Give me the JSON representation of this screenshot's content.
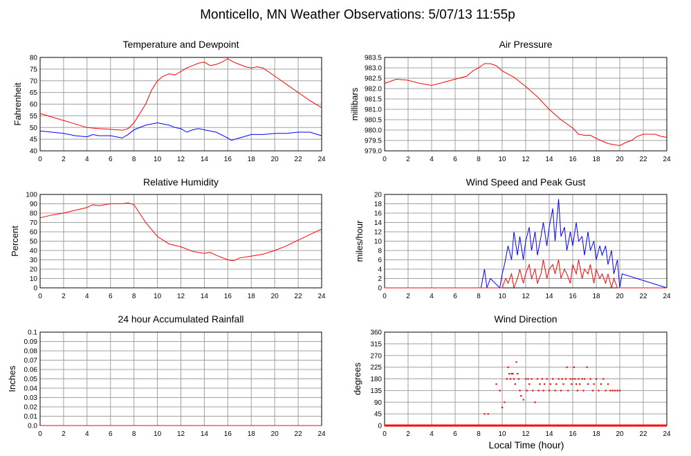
{
  "page_title": "Monticello, MN Weather Observations: 5/07/13 11:55p",
  "xlabel": "Local Time (hour)",
  "colors": {
    "red": "#ff0000",
    "blue": "#0000ff",
    "grid": "#a0a0a0",
    "axis": "#000000"
  },
  "chart_data": [
    {
      "type": "line",
      "title": "Temperature and Dewpoint",
      "ylabel": "Fahrenheit",
      "xlim": [
        0,
        24
      ],
      "ylim": [
        40,
        80
      ],
      "x_ticks": [
        0,
        2,
        4,
        6,
        8,
        10,
        12,
        14,
        16,
        18,
        20,
        22,
        24
      ],
      "y_ticks": [
        40,
        45,
        50,
        55,
        60,
        65,
        70,
        75,
        80
      ],
      "y_tick_labels": [
        "40",
        "45",
        "50",
        "55",
        "60",
        "65",
        "70",
        "75",
        "80"
      ],
      "grid": true,
      "series": [
        {
          "color": "#ff0000",
          "x": [
            0,
            1,
            2,
            3,
            4,
            5,
            6,
            7,
            7.5,
            8,
            9,
            9.5,
            10,
            10.5,
            11,
            11.5,
            12,
            12.5,
            13,
            13.5,
            14,
            14.5,
            15,
            15.5,
            16,
            16.5,
            17,
            17.5,
            18,
            18.5,
            19,
            20,
            21,
            22,
            23,
            24
          ],
          "y": [
            56,
            54.5,
            53,
            51.5,
            50,
            49.5,
            49.2,
            48.8,
            49.5,
            52,
            60,
            66,
            70,
            72,
            73,
            72.5,
            74,
            75.5,
            76.5,
            77.5,
            78,
            76.5,
            77,
            78,
            79.5,
            78,
            77,
            76,
            75.5,
            76,
            75.5,
            72,
            68.5,
            65,
            61.5,
            58.5
          ]
        },
        {
          "color": "#0000ff",
          "x": [
            0,
            1,
            2,
            3,
            4,
            4.5,
            5,
            6,
            7,
            7.5,
            8,
            9,
            10,
            11,
            11.5,
            12,
            12.5,
            13,
            13.5,
            14,
            14.5,
            15,
            16,
            16.3,
            17,
            18,
            19,
            20,
            21,
            22,
            23,
            24
          ],
          "y": [
            48.5,
            48,
            47.5,
            46.5,
            46,
            47,
            46.5,
            46.5,
            45.5,
            47,
            49,
            51,
            52,
            51,
            50,
            49.5,
            48,
            49,
            49.5,
            49,
            48.5,
            48,
            45.5,
            44.5,
            45.5,
            47,
            47,
            47.5,
            47.5,
            48,
            48,
            46.5
          ]
        }
      ]
    },
    {
      "type": "line",
      "title": "Air Pressure",
      "ylabel": "millibars",
      "xlim": [
        0,
        24
      ],
      "ylim": [
        979.0,
        983.5
      ],
      "x_ticks": [
        0,
        2,
        4,
        6,
        8,
        10,
        12,
        14,
        16,
        18,
        20,
        22,
        24
      ],
      "y_ticks": [
        979.0,
        979.5,
        980.0,
        980.5,
        981.0,
        981.5,
        982.0,
        982.5,
        983.0,
        983.5
      ],
      "y_tick_labels": [
        "979.0",
        "979.5",
        "980.0",
        "980.5",
        "981.0",
        "981.5",
        "982.0",
        "982.5",
        "983.0",
        "983.5"
      ],
      "grid": true,
      "series": [
        {
          "color": "#ff0000",
          "x": [
            0,
            0.5,
            1,
            2,
            3,
            4,
            5,
            6,
            7,
            7.5,
            8,
            8.5,
            9,
            9.5,
            10,
            11,
            12,
            13,
            14,
            15,
            16,
            16.5,
            17,
            17.5,
            18,
            19,
            19.5,
            20,
            20.5,
            21,
            21.5,
            22,
            23,
            23.5,
            24
          ],
          "y": [
            982.25,
            982.35,
            982.45,
            982.4,
            982.25,
            982.15,
            982.3,
            982.45,
            982.6,
            982.85,
            983.0,
            983.2,
            983.2,
            983.1,
            982.85,
            982.55,
            982.1,
            981.6,
            981.0,
            980.5,
            980.1,
            979.8,
            979.75,
            979.75,
            979.6,
            979.35,
            979.3,
            979.25,
            979.4,
            979.5,
            979.7,
            979.8,
            979.8,
            979.7,
            979.65
          ]
        }
      ]
    },
    {
      "type": "line",
      "title": "Relative Humidity",
      "ylabel": "Percent",
      "xlim": [
        0,
        24
      ],
      "ylim": [
        0,
        100
      ],
      "x_ticks": [
        0,
        2,
        4,
        6,
        8,
        10,
        12,
        14,
        16,
        18,
        20,
        22,
        24
      ],
      "y_ticks": [
        0,
        10,
        20,
        30,
        40,
        50,
        60,
        70,
        80,
        90,
        100
      ],
      "y_tick_labels": [
        "0",
        "10",
        "20",
        "30",
        "40",
        "50",
        "60",
        "70",
        "80",
        "90",
        "100"
      ],
      "grid": true,
      "series": [
        {
          "color": "#ff0000",
          "x": [
            0,
            1,
            2,
            3,
            4,
            4.5,
            5,
            6,
            7,
            7.5,
            8,
            9,
            10,
            11,
            12,
            13,
            14,
            14.5,
            15,
            16,
            16.5,
            17,
            18,
            19,
            20,
            21,
            22,
            23,
            24
          ],
          "y": [
            75,
            78,
            80,
            83,
            86,
            89,
            88,
            90,
            90,
            91,
            89,
            70,
            55,
            47,
            44,
            39,
            37,
            38,
            35,
            30,
            29,
            32,
            34,
            36,
            40,
            45,
            51,
            57,
            63
          ]
        }
      ]
    },
    {
      "type": "line",
      "title": "Wind Speed and Peak Gust",
      "ylabel": "miles/hour",
      "xlim": [
        0,
        24
      ],
      "ylim": [
        0,
        20
      ],
      "x_ticks": [
        0,
        2,
        4,
        6,
        8,
        10,
        12,
        14,
        16,
        18,
        20,
        22,
        24
      ],
      "y_ticks": [
        0,
        2,
        4,
        6,
        8,
        10,
        12,
        14,
        16,
        18,
        20
      ],
      "y_tick_labels": [
        "0",
        "2",
        "4",
        "6",
        "8",
        "10",
        "12",
        "14",
        "16",
        "18",
        "20"
      ],
      "grid": true,
      "series": [
        {
          "color": "#0000ff",
          "x": [
            0,
            8.2,
            8.5,
            8.7,
            9,
            9.8,
            10,
            10.2,
            10.5,
            10.8,
            11,
            11.3,
            11.5,
            11.8,
            12,
            12.3,
            12.5,
            12.8,
            13,
            13.3,
            13.5,
            13.8,
            14,
            14.3,
            14.5,
            14.8,
            15,
            15.3,
            15.5,
            15.8,
            16,
            16.3,
            16.5,
            16.8,
            17,
            17.3,
            17.5,
            17.8,
            18,
            18.3,
            18.5,
            18.8,
            19,
            19.3,
            19.5,
            19.8,
            20,
            20.2,
            24
          ],
          "y": [
            0,
            0,
            4,
            0,
            2,
            0,
            3,
            5,
            9,
            6,
            12,
            7,
            11,
            6,
            10,
            13,
            8,
            12,
            7,
            11,
            14,
            9,
            13,
            17,
            10,
            19,
            11,
            13,
            8,
            12,
            9,
            14,
            10,
            11,
            7,
            12,
            8,
            10,
            6,
            9,
            7,
            9,
            5,
            8,
            3,
            6,
            0,
            3,
            0
          ]
        },
        {
          "color": "#ff0000",
          "x": [
            0,
            10,
            10.3,
            10.5,
            10.8,
            11,
            11.3,
            11.5,
            11.8,
            12,
            12.3,
            12.5,
            12.8,
            13,
            13.3,
            13.5,
            13.8,
            14,
            14.3,
            14.5,
            14.8,
            15,
            15.3,
            15.5,
            15.8,
            16,
            16.3,
            16.5,
            16.8,
            17,
            17.3,
            17.5,
            17.8,
            18,
            18.3,
            18.5,
            18.8,
            19,
            19.3,
            19.5,
            19.8,
            20,
            24
          ],
          "y": [
            0,
            0,
            2,
            1,
            3,
            0,
            2,
            4,
            1,
            3,
            5,
            2,
            4,
            1,
            3,
            6,
            2,
            4,
            5,
            3,
            6,
            2,
            4,
            3,
            1,
            5,
            3,
            6,
            2,
            4,
            3,
            5,
            1,
            4,
            2,
            3,
            1,
            3,
            0,
            2,
            0,
            0,
            0
          ]
        }
      ]
    },
    {
      "type": "line",
      "title": "24 hour Accumulated Rainfall",
      "ylabel": "Inches",
      "xlim": [
        0,
        24
      ],
      "ylim": [
        0,
        0.1
      ],
      "x_ticks": [
        0,
        2,
        4,
        6,
        8,
        10,
        12,
        14,
        16,
        18,
        20,
        22,
        24
      ],
      "y_ticks": [
        0,
        0.01,
        0.02,
        0.03,
        0.04,
        0.05,
        0.06,
        0.07,
        0.08,
        0.09,
        0.1
      ],
      "y_tick_labels": [
        "0.0",
        "0.01",
        "0.02",
        "0.03",
        "0.04",
        "0.05",
        "0.06",
        "0.07",
        "0.08",
        "0.09",
        "0.1"
      ],
      "grid": true,
      "series": [
        {
          "color": "#ff0000",
          "x": [
            0,
            24
          ],
          "y": [
            0,
            0
          ]
        }
      ]
    },
    {
      "type": "scatter",
      "title": "Wind Direction",
      "ylabel": "degrees",
      "xlabel": "Local Time (hour)",
      "xlim": [
        0,
        24
      ],
      "ylim": [
        0,
        360
      ],
      "x_ticks": [
        0,
        2,
        4,
        6,
        8,
        10,
        12,
        14,
        16,
        18,
        20,
        22,
        24
      ],
      "y_ticks": [
        0,
        45,
        90,
        135,
        180,
        225,
        270,
        315,
        360
      ],
      "y_tick_labels": [
        "0",
        "45",
        "90",
        "135",
        "180",
        "225",
        "270",
        "315",
        "360"
      ],
      "grid": true,
      "baseline": {
        "value": 0,
        "from": 0,
        "to": 24
      },
      "series": [
        {
          "color": "#ff0000",
          "x": [
            8.5,
            8.8,
            9.5,
            9.8,
            10.0,
            10.2,
            10.4,
            10.5,
            10.6,
            10.7,
            10.8,
            10.9,
            11.0,
            11.1,
            11.2,
            11.3,
            11.4,
            11.5,
            11.6,
            11.8,
            12.0,
            12.1,
            12.2,
            12.3,
            12.5,
            12.6,
            12.8,
            13.0,
            13.1,
            13.2,
            13.4,
            13.5,
            13.6,
            13.8,
            14.0,
            14.1,
            14.3,
            14.5,
            14.6,
            14.8,
            15.0,
            15.1,
            15.2,
            15.4,
            15.5,
            15.6,
            15.8,
            15.9,
            16.0,
            16.1,
            16.2,
            16.3,
            16.4,
            16.5,
            16.6,
            16.8,
            16.9,
            17.0,
            17.2,
            17.3,
            17.5,
            17.7,
            17.8,
            18.0,
            18.2,
            18.4,
            18.6,
            18.8,
            19.0,
            19.2,
            19.4,
            19.6,
            19.8,
            20.0,
            18.0,
            18.8
          ],
          "y": [
            45,
            45,
            160,
            135,
            70,
            90,
            180,
            225,
            200,
            180,
            200,
            200,
            180,
            160,
            245,
            200,
            180,
            135,
            115,
            100,
            180,
            135,
            180,
            160,
            180,
            135,
            90,
            180,
            135,
            160,
            180,
            135,
            160,
            180,
            135,
            160,
            180,
            135,
            160,
            180,
            135,
            180,
            160,
            180,
            225,
            135,
            180,
            160,
            180,
            225,
            180,
            160,
            135,
            180,
            160,
            180,
            135,
            180,
            225,
            160,
            180,
            135,
            160,
            180,
            135,
            160,
            180,
            135,
            160,
            135,
            135,
            135,
            135,
            135,
            0,
            0
          ]
        }
      ]
    }
  ]
}
